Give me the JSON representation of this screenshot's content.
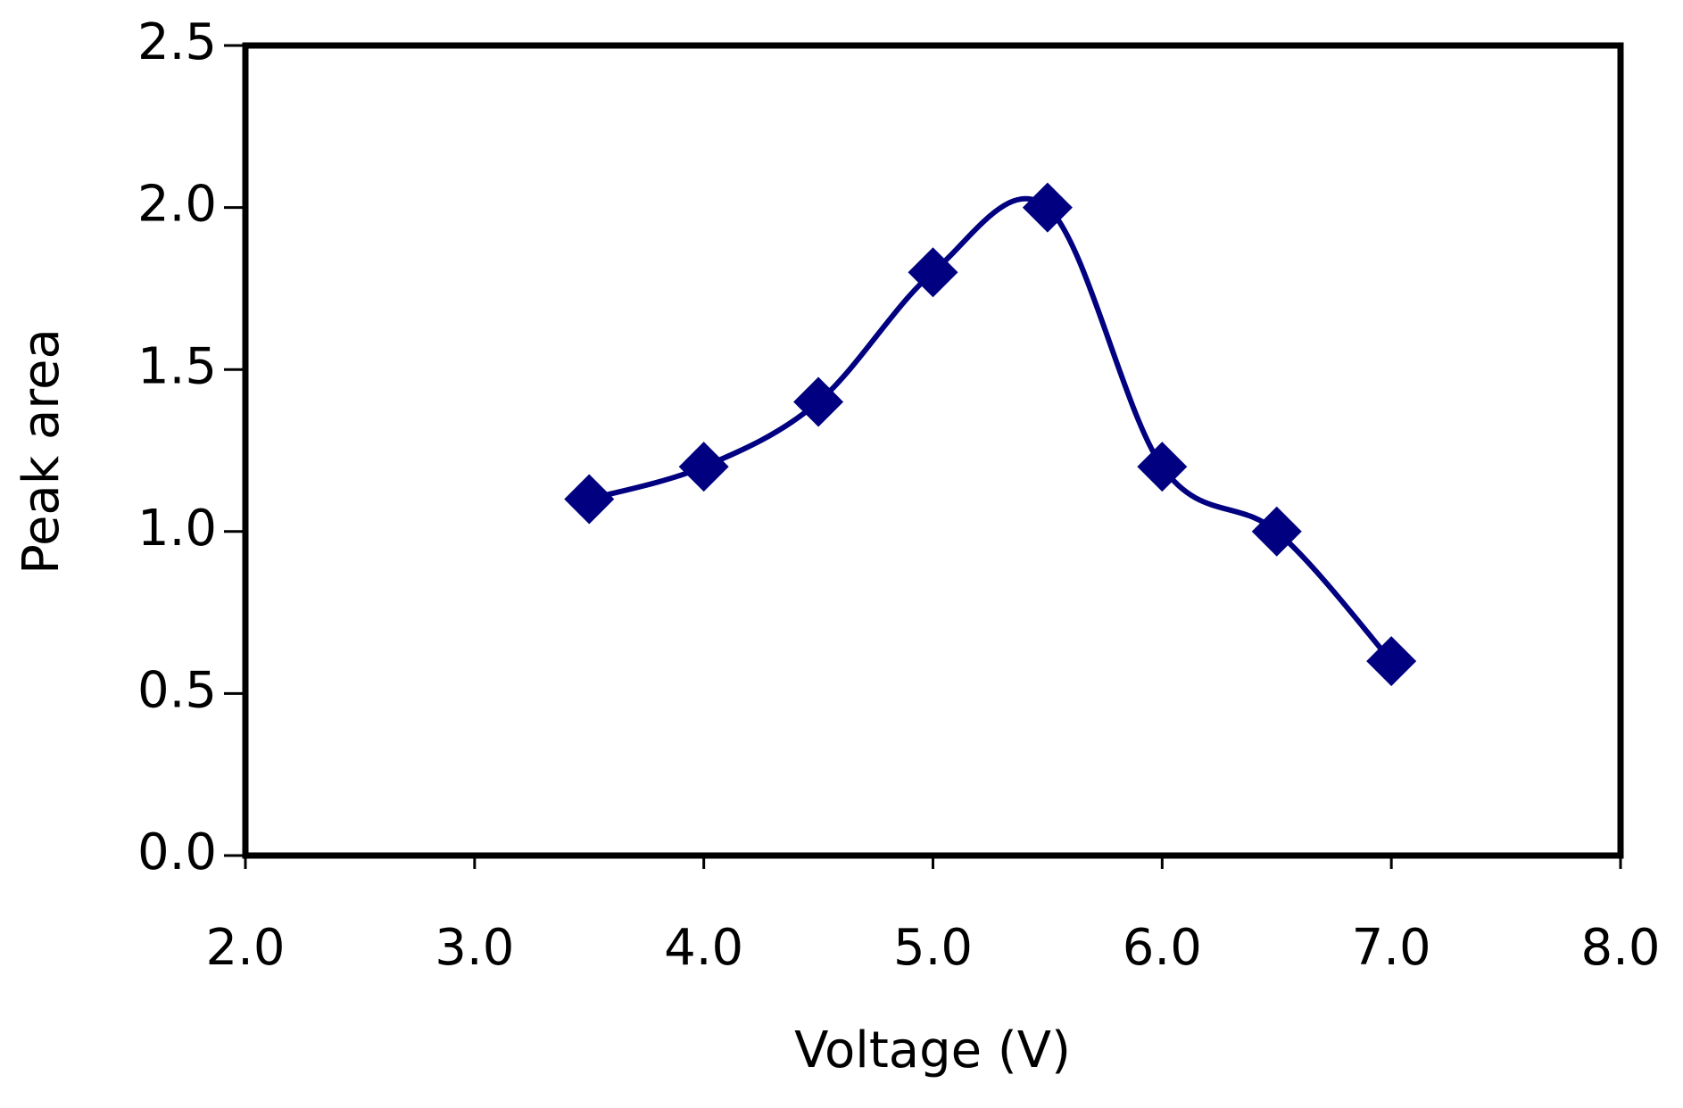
{
  "chart_data": {
    "type": "line",
    "xlabel": "Voltage (V)",
    "ylabel": "Peak  area",
    "x": [
      3.5,
      4.0,
      4.5,
      5.0,
      5.5,
      6.0,
      6.5,
      7.0
    ],
    "values": [
      1.1,
      1.2,
      1.4,
      1.8,
      2.0,
      1.2,
      1.0,
      0.6
    ],
    "color": "#000080",
    "marker": "diamond",
    "smooth": true,
    "xlim": [
      2,
      8
    ],
    "xticks": [
      {
        "value": 2,
        "label": "2.0"
      },
      {
        "value": 3,
        "label": "3.0"
      },
      {
        "value": 4,
        "label": "4.0"
      },
      {
        "value": 5,
        "label": "5.0"
      },
      {
        "value": 6,
        "label": "6.0"
      },
      {
        "value": 7,
        "label": "7.0"
      },
      {
        "value": 8,
        "label": "8.0"
      }
    ],
    "ylim": [
      0,
      2.5
    ],
    "yticks": [
      {
        "value": 0,
        "label": "0.0"
      },
      0.5,
      {
        "value": 1,
        "label": "1.0"
      },
      1.5,
      {
        "value": 2,
        "label": "2.0"
      },
      2.5
    ],
    "grid": false
  }
}
